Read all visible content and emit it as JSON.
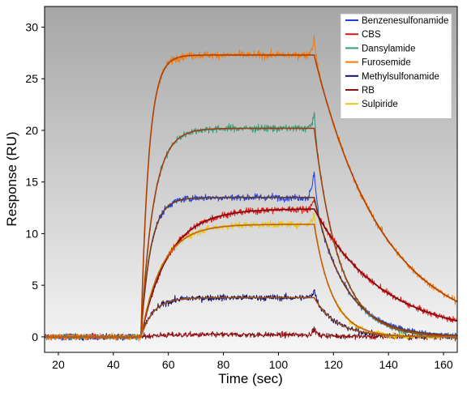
{
  "chart_data": {
    "type": "line",
    "title": "",
    "xlabel": "Time (sec)",
    "ylabel": "Response (RU)",
    "xlim": [
      15,
      165
    ],
    "ylim": [
      -1.5,
      32
    ],
    "xticks": [
      20,
      40,
      60,
      80,
      100,
      120,
      140,
      160
    ],
    "yticks": [
      0,
      5,
      10,
      15,
      20,
      25,
      30
    ],
    "grid": false,
    "legend_position": "top-right",
    "background": "gradient-gray",
    "injection_start_sec": 50,
    "injection_end_sec": 113,
    "noise_level_ru": 0.45,
    "series": [
      {
        "name": "Benzenesulfonamide",
        "color": "#1f3fe0",
        "fit_color": "#7a3a10",
        "plateau": 13.5,
        "ka": 0.28,
        "kd": 0.09,
        "peak": 16.3
      },
      {
        "name": "CBS",
        "color": "#e01a1a",
        "fit_color": "#7a0a0a",
        "plateau": 12.4,
        "ka": 0.1,
        "kd": 0.04,
        "peak": 13.5
      },
      {
        "name": "Dansylamide",
        "color": "#3a9a80",
        "fit_color": "#a04010",
        "plateau": 20.2,
        "ka": 0.22,
        "kd": 0.11,
        "peak": 21.6
      },
      {
        "name": "Furosemide",
        "color": "#f07b10",
        "fit_color": "#b04000",
        "plateau": 27.3,
        "ka": 0.35,
        "kd": 0.04,
        "peak": 29.0
      },
      {
        "name": "Methylsulfonamide",
        "color": "#10106a",
        "fit_color": "#a05010",
        "plateau": 3.8,
        "ka": 0.22,
        "kd": 0.12,
        "peak": 4.6
      },
      {
        "name": "RB",
        "color": "#8b1010",
        "fit_color": "#5a0a0a",
        "plateau": 0.2,
        "ka": 0.2,
        "kd": 0.1,
        "peak": 0.8
      },
      {
        "name": "Sulpiride",
        "color": "#e6c81a",
        "fit_color": "#c06010",
        "plateau": 10.9,
        "ka": 0.13,
        "kd": 0.15,
        "peak": 12.0
      }
    ]
  }
}
